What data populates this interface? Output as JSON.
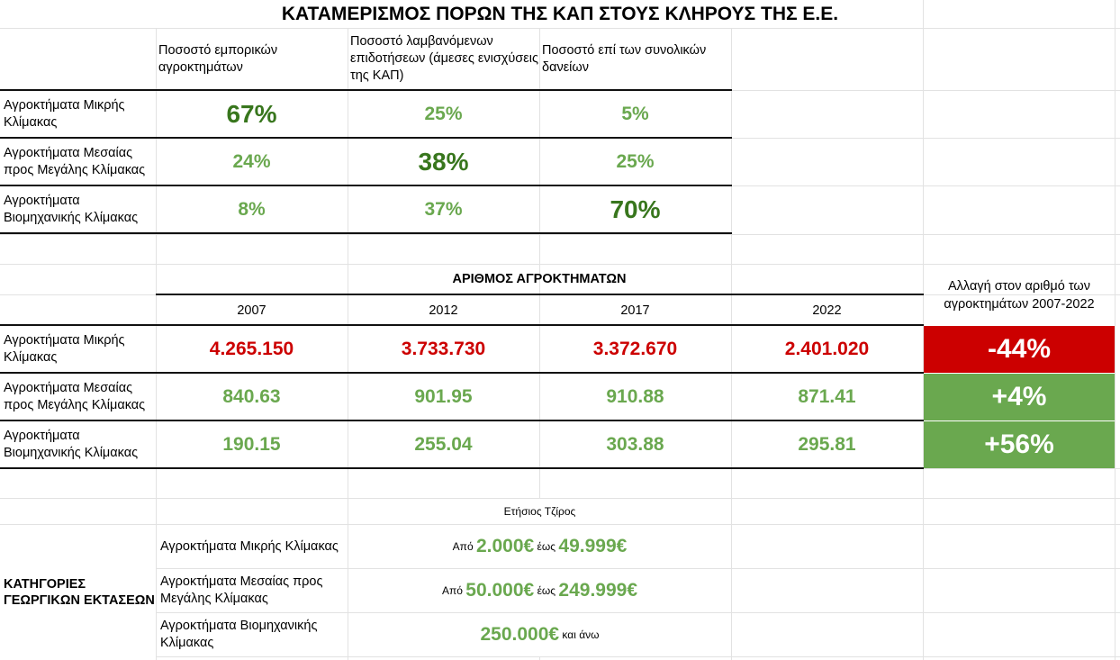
{
  "title": "ΚΑΤΑΜΕΡΙΣΜΟΣ ΠΟΡΩΝ ΤΗΣ ΚΑΠ ΣΤΟΥΣ ΚΛΗΡΟΥΣ ΤΗΣ Ε.Ε.",
  "table1": {
    "headers": [
      "Ποσοστό εμπορικών αγροκτημάτων",
      "Ποσοστό λαμβανόμενων επιδοτήσεων (άμεσες ενισχύσεις της ΚΑΠ)",
      "Ποσοστό επί των συνολικών δανείων"
    ],
    "rows": [
      {
        "label": "Αγροκτήματα Μικρής Κλίμακας",
        "values": [
          "67%",
          "25%",
          "5%"
        ]
      },
      {
        "label": "Αγροκτήματα Μεσαίας προς Μεγάλης Κλίμακας",
        "values": [
          "24%",
          "38%",
          "25%"
        ]
      },
      {
        "label": "Αγροκτήματα Βιομηχανικής Κλίμακας",
        "values": [
          "8%",
          "37%",
          "70%"
        ]
      }
    ]
  },
  "table2": {
    "title": "ΑΡΙΘΜΟΣ ΑΓΡΟΚΤΗΜΑΤΩΝ",
    "years": [
      "2007",
      "2012",
      "2017",
      "2022"
    ],
    "change_header": "Αλλαγή στον αριθμό των αγροκτημάτων 2007-2022",
    "rows": [
      {
        "label": "Αγροκτήματα Μικρής Κλίμακας",
        "values": [
          "4.265.150",
          "3.733.730",
          "3.372.670",
          "2.401.020"
        ],
        "change": "-44%",
        "change_color": "#cc0000"
      },
      {
        "label": "Αγροκτήματα  Μεσαίας προς Μεγάλης Κλίμακας",
        "values": [
          "840.63",
          "901.95",
          "910.88",
          "871.41"
        ],
        "change": "+4%",
        "change_color": "#6aa84f"
      },
      {
        "label": "Αγροκτήματα Βιομηχανικής Κλίμακας",
        "values": [
          "190.15",
          "255.04",
          "303.88",
          "295.81"
        ],
        "change": "+56%",
        "change_color": "#6aa84f"
      }
    ]
  },
  "table3": {
    "category_label": "ΚΑΤΗΓΟΡΙΕΣ ΓΕΩΡΓΙΚΩΝ ΕΚΤΑΣΕΩΝ",
    "header": "Ετήσιος Τζίρος",
    "rows": [
      {
        "label": "Αγροκτήματα Μικρής Κλίμακας",
        "from_word": "Από",
        "from": "2.000€",
        "to_word": "έως",
        "to": "49.999€"
      },
      {
        "label": "Αγροκτήματα  Μεσαίας προς Μεγάλης Κλίμακας",
        "from_word": "Από",
        "from": "50.000€",
        "to_word": "έως",
        "to": "249.999€"
      },
      {
        "label": "Αγροκτήματα Βιομηχανικής Κλίμακας",
        "value": "250.000€",
        "suffix": "και άνω"
      }
    ]
  },
  "colors": {
    "green": "#6aa84f",
    "dark_green": "#38761d",
    "red": "#cc0000"
  }
}
